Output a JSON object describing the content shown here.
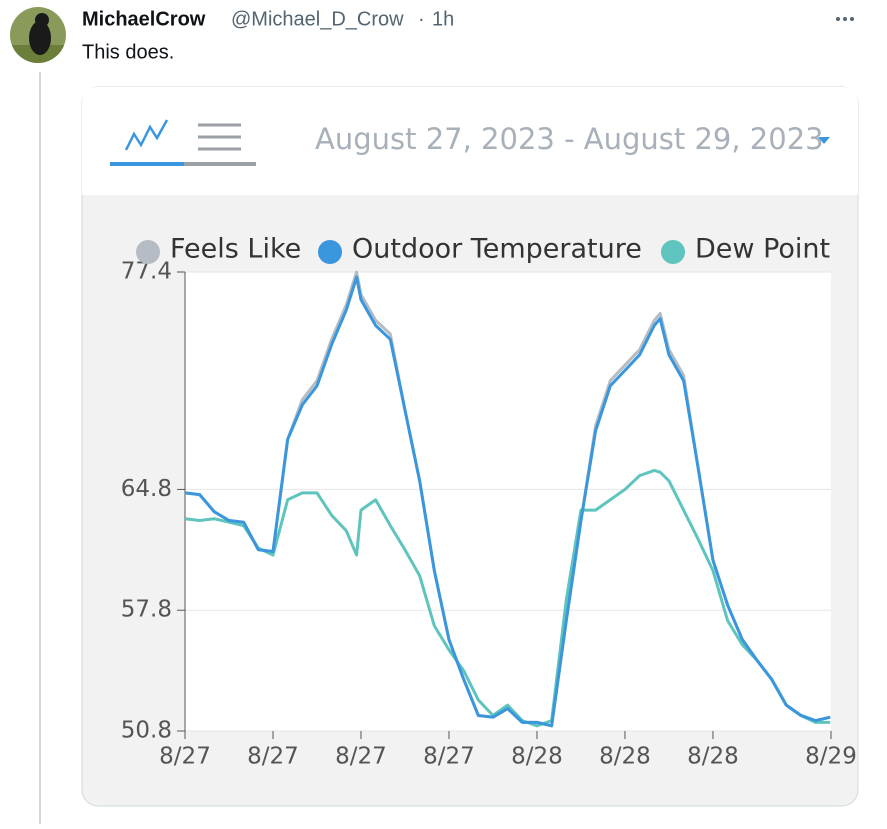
{
  "tweet": {
    "author": "MichaelCrow",
    "handle": "@Michael_D_Crow",
    "separator": "·",
    "time": "1h",
    "text": "This does."
  },
  "widget": {
    "date_range": "August 27, 2023 - August 29, 2023"
  },
  "chart_data": {
    "type": "line",
    "x": [
      0,
      1,
      2,
      3,
      4,
      5,
      6,
      7,
      8,
      9,
      10,
      11,
      11.7,
      12,
      13,
      14,
      15,
      16,
      17,
      18,
      19,
      20,
      21,
      22,
      23,
      24,
      25,
      26,
      27,
      28,
      29,
      30,
      31,
      32,
      32.4,
      33,
      34,
      35,
      36,
      37,
      38,
      39,
      40,
      41,
      42,
      43,
      44
    ],
    "series": [
      {
        "name": "Feels Like",
        "color": "#b5bcc3",
        "values": [
          64.6,
          64.5,
          63.5,
          63.0,
          62.9,
          61.3,
          61.2,
          67.7,
          70.0,
          71.1,
          73.5,
          75.5,
          77.4,
          76.1,
          74.6,
          73.8,
          69.4,
          65.3,
          60.1,
          56.1,
          53.8,
          51.7,
          51.6,
          52.1,
          51.3,
          51.3,
          51.1,
          57.2,
          63.0,
          68.5,
          71.1,
          72.0,
          72.9,
          74.6,
          75.0,
          72.9,
          71.4,
          66.0,
          60.7,
          58.1,
          56.1,
          54.9,
          53.8,
          52.3,
          51.7,
          51.4,
          51.6
        ]
      },
      {
        "name": "Outdoor Temperature",
        "color": "#3a96dd",
        "values": [
          64.6,
          64.5,
          63.5,
          63.0,
          62.9,
          61.3,
          61.2,
          67.7,
          69.7,
          70.8,
          73.2,
          75.2,
          77.1,
          75.8,
          74.3,
          73.5,
          69.4,
          65.3,
          60.1,
          56.1,
          53.8,
          51.7,
          51.6,
          52.1,
          51.3,
          51.3,
          51.1,
          57.2,
          63.0,
          68.2,
          70.8,
          71.7,
          72.6,
          74.3,
          74.7,
          72.6,
          71.1,
          66.0,
          60.7,
          58.1,
          56.1,
          54.9,
          53.8,
          52.3,
          51.7,
          51.4,
          51.6
        ]
      },
      {
        "name": "Dew Point",
        "color": "#5ec4bd",
        "values": [
          63.1,
          63.0,
          63.1,
          62.9,
          62.7,
          61.4,
          61.0,
          64.2,
          64.6,
          64.6,
          63.3,
          62.4,
          61.0,
          63.6,
          64.2,
          62.7,
          61.3,
          59.8,
          56.9,
          55.5,
          54.3,
          52.6,
          51.7,
          52.3,
          51.4,
          51.1,
          51.4,
          58.4,
          63.6,
          63.6,
          64.2,
          64.8,
          65.6,
          65.9,
          65.8,
          65.3,
          63.6,
          61.9,
          60.1,
          57.2,
          55.8,
          54.9,
          53.8,
          52.3,
          51.7,
          51.3,
          51.3
        ]
      }
    ],
    "xlim": [
      0,
      44.05
    ],
    "xticks": [
      {
        "value": 0,
        "label": "8/27"
      },
      {
        "value": 6,
        "label": "8/27"
      },
      {
        "value": 12,
        "label": "8/27"
      },
      {
        "value": 18,
        "label": "8/27"
      },
      {
        "value": 24,
        "label": "8/28"
      },
      {
        "value": 30,
        "label": "8/28"
      },
      {
        "value": 36,
        "label": "8/28"
      },
      {
        "value": 44.05,
        "label": "8/29"
      }
    ],
    "ylim": [
      50.8,
      77.4
    ],
    "yticks": [
      50.8,
      57.8,
      64.8,
      77.4
    ],
    "grid": true
  }
}
